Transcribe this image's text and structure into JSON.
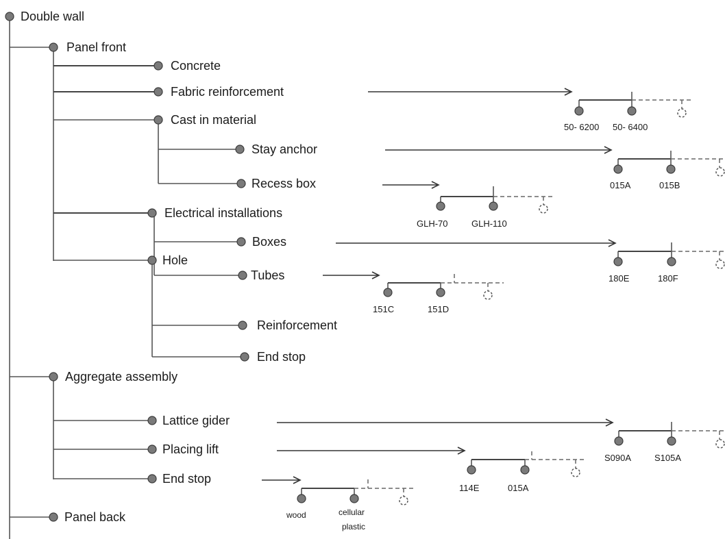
{
  "tree": {
    "root": "Double wall",
    "level1": {
      "panel_front": "Panel front",
      "aggregate_assembly": "Aggregate assembly",
      "panel_back": "Panel back"
    },
    "panel_front": {
      "concrete": "Concrete",
      "fabric_reinforcement": "Fabric reinforcement",
      "cast_in_material": "Cast in material",
      "stay_anchor": "Stay anchor",
      "recess_box": "Recess box",
      "electrical_installations": "Electrical installations",
      "boxes": "Boxes",
      "tubes": "Tubes",
      "hole": "Hole",
      "reinforcement": "Reinforcement",
      "end_stop": "End stop"
    },
    "aggregate": {
      "lattice_gider": "Lattice gider",
      "placing_lift": "Placing lift",
      "end_stop": "End stop"
    }
  },
  "variants": {
    "fabric_reinforcement": [
      "50- 6200",
      "50- 6400"
    ],
    "stay_anchor": [
      "015A",
      "015B"
    ],
    "recess_box": [
      "GLH-70",
      "GLH-110"
    ],
    "boxes": [
      "180E",
      "180F"
    ],
    "tubes": [
      "151C",
      "151D"
    ],
    "lattice_gider": [
      "S090A",
      "S105A"
    ],
    "placing_lift": [
      "114E",
      "015A"
    ],
    "end_stop": [
      "wood",
      "cellular",
      "plastic"
    ]
  }
}
